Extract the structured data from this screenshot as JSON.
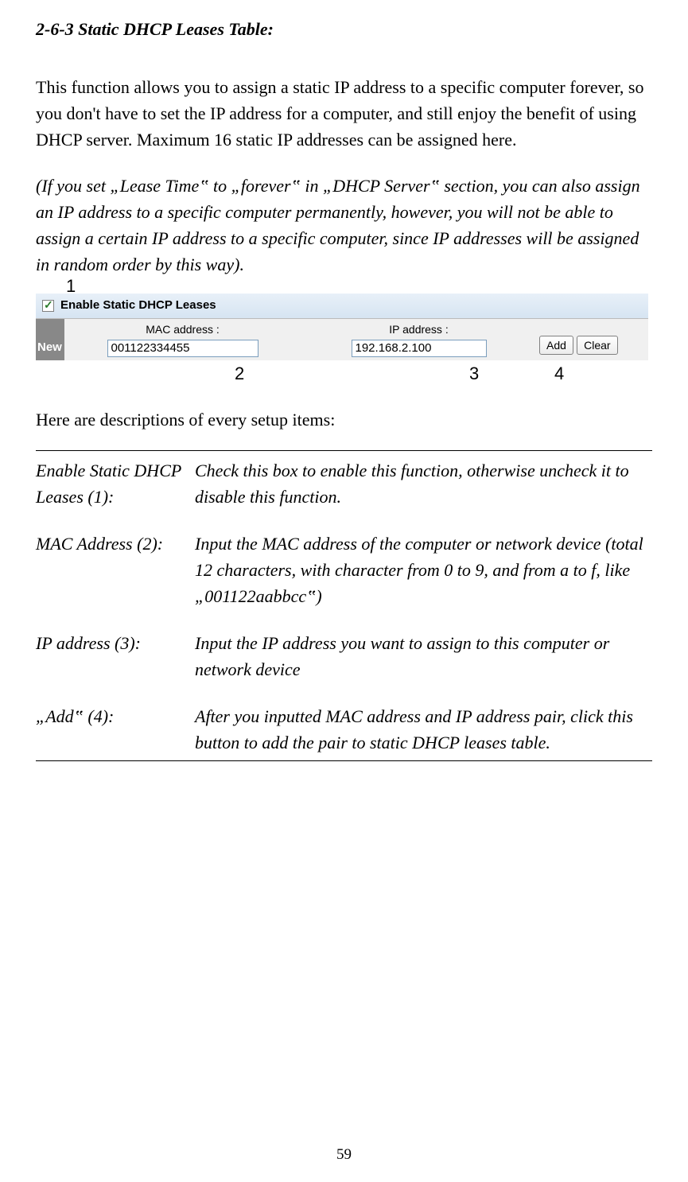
{
  "section_title": "2-6-3 Static DHCP Leases Table:",
  "intro_para": "This function allows you to assign a static IP address to a specific computer forever, so you don't have to set the IP address for a computer, and still enjoy the benefit of using DHCP server. Maximum 16 static IP addresses can be assigned here.",
  "note_para": "(If you set „Lease Time‟ to „forever‟ in „DHCP Server‟ section, you can also assign an IP address to a specific computer permanently, however, you will not be able to assign a certain IP address to a specific computer, since IP addresses will be assigned in random order by this way).",
  "callouts": {
    "c1": "1",
    "c2": "2",
    "c3": "3",
    "c4": "4"
  },
  "ui": {
    "header_label": "Enable Static DHCP Leases",
    "new_label": "New",
    "mac_label": "MAC address :",
    "ip_label": "IP address :",
    "mac_value": "001122334455",
    "ip_value": "192.168.2.100",
    "add_btn": "Add",
    "clear_btn": "Clear"
  },
  "desc_intro": "Here are descriptions of every setup items:",
  "rows": [
    {
      "label": "Enable Static DHCP Leases (1):",
      "text": "Check this box to enable this function, otherwise uncheck it to disable this function."
    },
    {
      "label": "MAC Address (2):",
      "text": "Input the MAC address of the computer or network device (total 12 characters, with character from 0 to 9, and from a to f, like „001122aabbcc‟)"
    },
    {
      "label": "IP address (3):",
      "text": "Input the IP address you want to assign to this computer or network device"
    },
    {
      "label": "„Add‟ (4):",
      "text": "After you inputted MAC address and IP address pair, click this button to add the pair to static DHCP leases table."
    }
  ],
  "page_number": "59"
}
